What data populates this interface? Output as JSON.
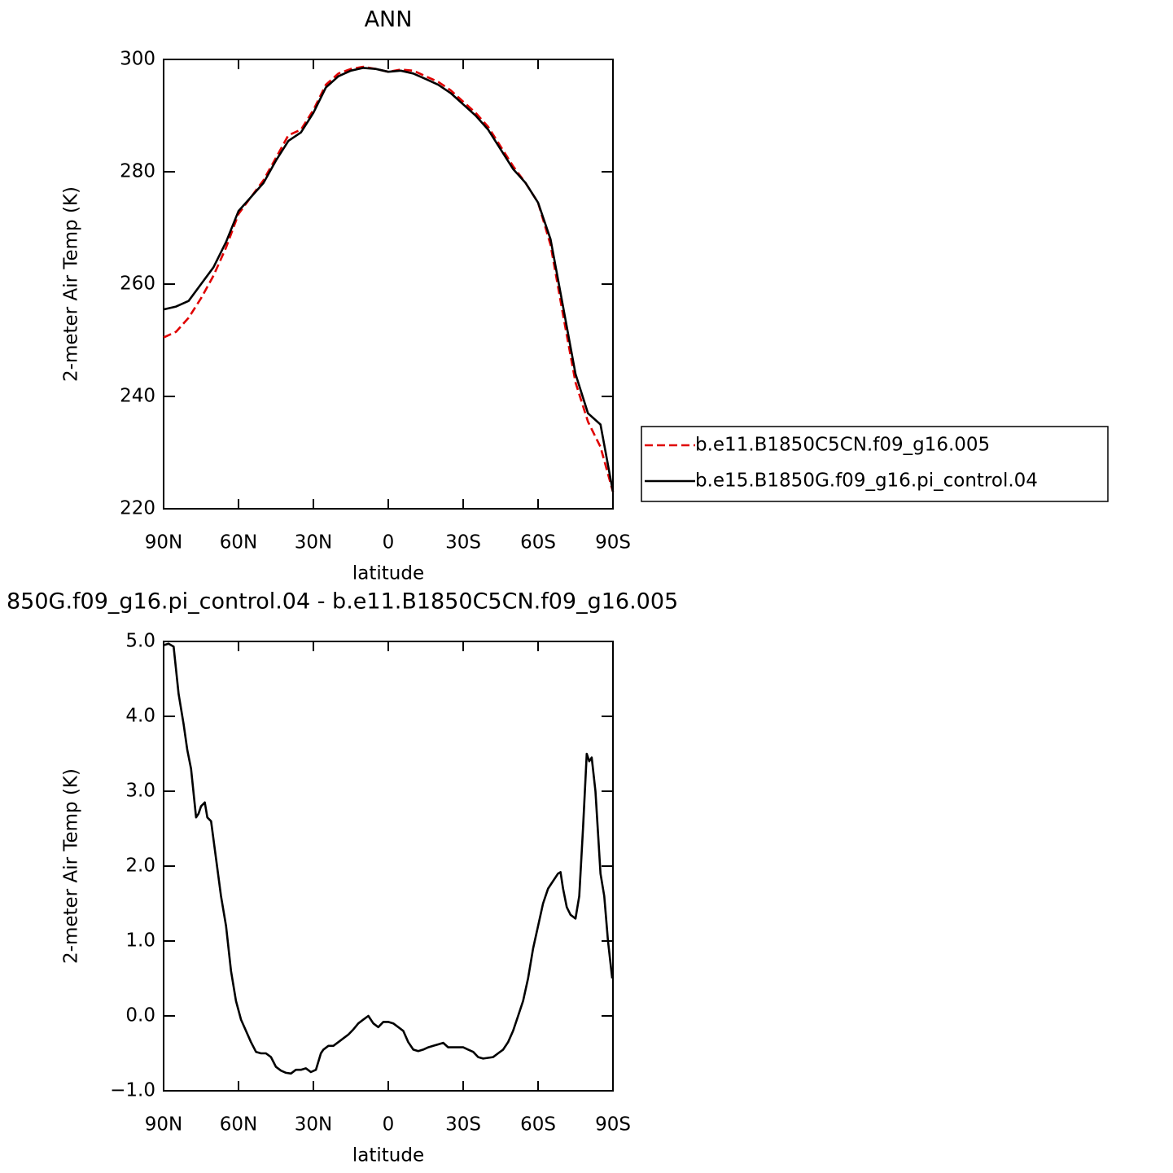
{
  "chart_data": [
    {
      "type": "line",
      "title": "ANN",
      "x_label": "latitude",
      "y_label": "2-meter Air Temp (K)",
      "x": [
        90,
        85,
        80,
        75,
        70,
        65,
        60,
        55,
        50,
        45,
        40,
        35,
        30,
        25,
        20,
        15,
        10,
        5,
        0,
        -5,
        -10,
        -15,
        -20,
        -25,
        -30,
        -35,
        -40,
        -45,
        -50,
        -55,
        -60,
        -65,
        -70,
        -75,
        -80,
        -85,
        -90
      ],
      "xlim": [
        90,
        -90
      ],
      "xticks": [
        {
          "value": 90,
          "label": "90N"
        },
        {
          "value": 60,
          "label": "60N"
        },
        {
          "value": 30,
          "label": "30N"
        },
        0,
        {
          "value": -30,
          "label": "30S"
        },
        {
          "value": -60,
          "label": "60S"
        },
        {
          "value": -90,
          "label": "90S"
        }
      ],
      "ylim": [
        220,
        300
      ],
      "yticks": [
        220,
        240,
        260,
        280,
        300
      ],
      "legend": "right",
      "series": [
        {
          "name": "b.e11.B1850C5CN.f09_g16.005",
          "color": "#e00000",
          "dash": true,
          "values": [
            250.5,
            251.5,
            254,
            257.5,
            261.5,
            266.5,
            272.5,
            275.5,
            278.5,
            282.5,
            286.5,
            287.5,
            291,
            295.5,
            297.5,
            298.3,
            298.7,
            298.3,
            297.8,
            298.2,
            298,
            297,
            296,
            294.5,
            292.5,
            290.5,
            288,
            284.5,
            281,
            278,
            274.5,
            267,
            254.5,
            242.5,
            235.5,
            231,
            223
          ]
        },
        {
          "name": "b.e15.B1850G.f09_g16.pi_control.04",
          "color": "#000000",
          "dash": false,
          "values": [
            255.5,
            256,
            257,
            260,
            263,
            267.5,
            273,
            275.5,
            278,
            282,
            285.5,
            287,
            290.5,
            295,
            297,
            298,
            298.5,
            298.3,
            297.8,
            298,
            297.5,
            296.5,
            295.5,
            294,
            292,
            290,
            287.5,
            284,
            280.5,
            278,
            274.5,
            268,
            256,
            244,
            237,
            235,
            223
          ]
        }
      ]
    },
    {
      "type": "line",
      "title": "850G.f09_g16.pi_control.04 - b.e11.B1850C5CN.f09_g16.005",
      "x_label": "latitude",
      "y_label": "2-meter Air Temp (K)",
      "x": [
        90,
        88,
        86,
        84,
        82,
        80.5,
        79,
        77,
        76,
        75,
        73.5,
        72.5,
        71,
        69,
        67,
        65,
        63,
        61,
        59,
        57,
        55,
        53,
        51,
        49,
        47,
        45,
        43,
        41,
        39,
        37,
        35,
        33,
        31,
        29,
        27,
        26,
        24,
        22,
        20,
        18,
        16,
        14,
        12,
        10,
        8,
        6,
        4,
        2,
        0,
        -2,
        -4,
        -6,
        -8,
        -10,
        -12,
        -14,
        -16,
        -18,
        -20,
        -22,
        -24,
        -26,
        -28,
        -30,
        -32,
        -34,
        -36,
        -38,
        -40,
        -42,
        -44,
        -46,
        -48,
        -50,
        -52,
        -54,
        -56,
        -58,
        -60,
        -62,
        -64,
        -66,
        -68,
        -69,
        -70,
        -71.5,
        -73,
        -75,
        -76.5,
        -78,
        -79.5,
        -80.5,
        -81.5,
        -83,
        -85,
        -86.5,
        -88,
        -89.7
      ],
      "values": [
        4.95,
        4.97,
        4.93,
        4.3,
        3.9,
        3.55,
        3.3,
        2.65,
        2.7,
        2.8,
        2.85,
        2.65,
        2.6,
        2.1,
        1.6,
        1.2,
        0.6,
        0.2,
        -0.05,
        -0.2,
        -0.35,
        -0.48,
        -0.5,
        -0.5,
        -0.55,
        -0.68,
        -0.73,
        -0.76,
        -0.77,
        -0.72,
        -0.72,
        -0.7,
        -0.75,
        -0.72,
        -0.5,
        -0.45,
        -0.4,
        -0.4,
        -0.35,
        -0.3,
        -0.25,
        -0.18,
        -0.1,
        -0.05,
        0,
        -0.1,
        -0.15,
        -0.08,
        -0.08,
        -0.1,
        -0.15,
        -0.2,
        -0.35,
        -0.45,
        -0.47,
        -0.45,
        -0.42,
        -0.4,
        -0.38,
        -0.36,
        -0.42,
        -0.42,
        -0.42,
        -0.42,
        -0.45,
        -0.48,
        -0.55,
        -0.57,
        -0.56,
        -0.55,
        -0.5,
        -0.45,
        -0.35,
        -0.2,
        0,
        0.2,
        0.5,
        0.9,
        1.2,
        1.5,
        1.7,
        1.8,
        1.9,
        1.92,
        1.7,
        1.45,
        1.35,
        1.3,
        1.6,
        2.5,
        3.5,
        3.4,
        3.45,
        3,
        1.9,
        1.6,
        1,
        0.5
      ],
      "color": "#000000",
      "xlim": [
        90,
        -90
      ],
      "xticks": [
        {
          "value": 90,
          "label": "90N"
        },
        {
          "value": 60,
          "label": "60N"
        },
        {
          "value": 30,
          "label": "30N"
        },
        0,
        {
          "value": -30,
          "label": "30S"
        },
        {
          "value": -60,
          "label": "60S"
        },
        {
          "value": -90,
          "label": "90S"
        }
      ],
      "ylim": [
        -1,
        5
      ],
      "yticks": [
        {
          "value": -1,
          "label": "−1.0"
        },
        {
          "value": 0,
          "label": "0.0"
        },
        {
          "value": 1,
          "label": "1.0"
        },
        {
          "value": 2,
          "label": "2.0"
        },
        {
          "value": 3,
          "label": "3.0"
        },
        {
          "value": 4,
          "label": "4.0"
        },
        {
          "value": 5,
          "label": "5.0"
        }
      ]
    }
  ]
}
